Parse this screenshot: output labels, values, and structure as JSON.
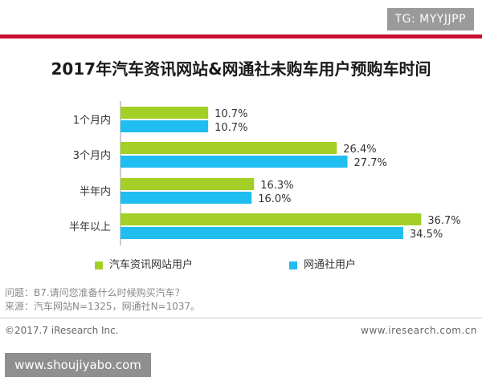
{
  "tg_badge": "TG: MYYJJPP",
  "chart_data": {
    "type": "bar",
    "orientation": "horizontal",
    "title": "2017年汽车资讯网站&网通社未购车用户预购车时间",
    "categories": [
      "1个月内",
      "3个月内",
      "半年内",
      "半年以上"
    ],
    "series": [
      {
        "name": "汽车资讯网站用户",
        "color": "#a3cf27",
        "values": [
          10.7,
          26.4,
          16.3,
          36.7
        ],
        "labels": [
          "10.7%",
          "26.4%",
          "16.3%",
          "36.7%"
        ]
      },
      {
        "name": "网通社用户",
        "color": "#20bdf0",
        "values": [
          10.7,
          27.7,
          16.0,
          34.5
        ],
        "labels": [
          "10.7%",
          "27.7%",
          "16.0%",
          "34.5%"
        ]
      }
    ],
    "xlim": [
      0,
      40
    ],
    "grid": false,
    "legend_position": "bottom"
  },
  "notes": {
    "question": "问题：B7.请问您准备什么时候购买汽车？",
    "source": "来源：汽车网站N=1325，网通社N=1037。"
  },
  "footer": {
    "copyright": "©2017.7 iResearch Inc.",
    "url": "www.iresearch.com.cn"
  },
  "watermark": "www.shoujiyabo.com"
}
